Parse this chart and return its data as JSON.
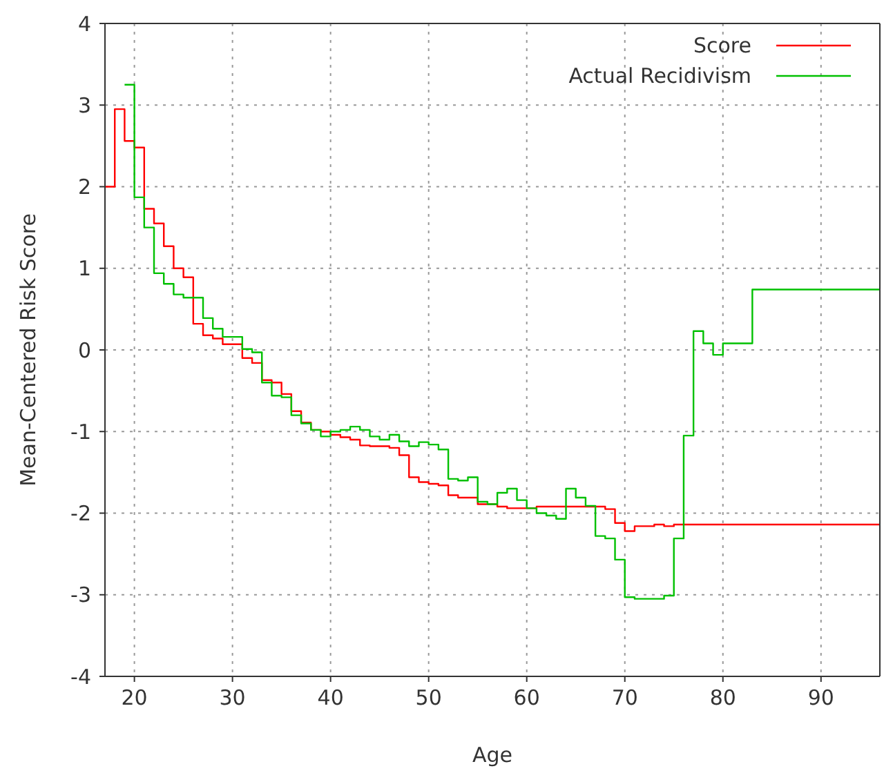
{
  "chart_data": {
    "type": "step",
    "xlabel": "Age",
    "ylabel": "Mean-Centered Risk Score",
    "xlim": [
      17,
      96
    ],
    "ylim": [
      -4,
      4
    ],
    "xticks": [
      20,
      30,
      40,
      50,
      60,
      70,
      80,
      90
    ],
    "yticks": [
      -4,
      -3,
      -2,
      -1,
      0,
      1,
      2,
      3,
      4
    ],
    "grid": true,
    "legend": "top right",
    "marker": "none",
    "line_style": "solid",
    "series": [
      {
        "name": "Score",
        "color": "#ff0000",
        "x": [
          17,
          18,
          19,
          20,
          21,
          22,
          23,
          24,
          25,
          26,
          27,
          28,
          29,
          31,
          32,
          33,
          34,
          35,
          36,
          37,
          38,
          39,
          40,
          41,
          42,
          43,
          44,
          46,
          47,
          48,
          49,
          50,
          51,
          52,
          53,
          55,
          57,
          58,
          61,
          68,
          69,
          70,
          71,
          73,
          74,
          75,
          96
        ],
        "values": [
          2.0,
          2.95,
          2.56,
          2.48,
          1.73,
          1.55,
          1.27,
          1.0,
          0.89,
          0.32,
          0.18,
          0.14,
          0.07,
          -0.1,
          -0.16,
          -0.37,
          -0.4,
          -0.54,
          -0.75,
          -0.89,
          -0.98,
          -1.0,
          -1.04,
          -1.07,
          -1.1,
          -1.17,
          -1.18,
          -1.2,
          -1.29,
          -1.56,
          -1.62,
          -1.64,
          -1.66,
          -1.78,
          -1.81,
          -1.89,
          -1.92,
          -1.94,
          -1.92,
          -1.95,
          -2.12,
          -2.22,
          -2.16,
          -2.14,
          -2.16,
          -2.14,
          -2.14
        ]
      },
      {
        "name": "Actual Recidivism",
        "color": "#00c000",
        "x": [
          19,
          20,
          21,
          22,
          23,
          24,
          25,
          27,
          28,
          29,
          31,
          32,
          33,
          34,
          35,
          36,
          37,
          38,
          39,
          40,
          41,
          42,
          43,
          44,
          45,
          46,
          47,
          48,
          49,
          50,
          51,
          52,
          53,
          54,
          55,
          56,
          57,
          58,
          59,
          60,
          61,
          62,
          63,
          64,
          65,
          66,
          67,
          68,
          69,
          70,
          71,
          74,
          75,
          76,
          77,
          78,
          79,
          80,
          83,
          96
        ],
        "values": [
          3.25,
          1.87,
          1.5,
          0.94,
          0.81,
          0.68,
          0.64,
          0.39,
          0.26,
          0.16,
          0.01,
          -0.03,
          -0.4,
          -0.56,
          -0.58,
          -0.8,
          -0.9,
          -0.98,
          -1.06,
          -1.0,
          -0.98,
          -0.94,
          -0.98,
          -1.06,
          -1.1,
          -1.04,
          -1.12,
          -1.18,
          -1.13,
          -1.16,
          -1.22,
          -1.58,
          -1.6,
          -1.56,
          -1.86,
          -1.89,
          -1.75,
          -1.7,
          -1.84,
          -1.94,
          -2.0,
          -2.03,
          -2.07,
          -1.7,
          -1.81,
          -1.91,
          -2.28,
          -2.31,
          -2.57,
          -3.03,
          -3.05,
          -3.01,
          -2.31,
          -1.05,
          0.23,
          0.08,
          -0.06,
          0.08,
          0.74,
          0.74
        ]
      }
    ]
  }
}
